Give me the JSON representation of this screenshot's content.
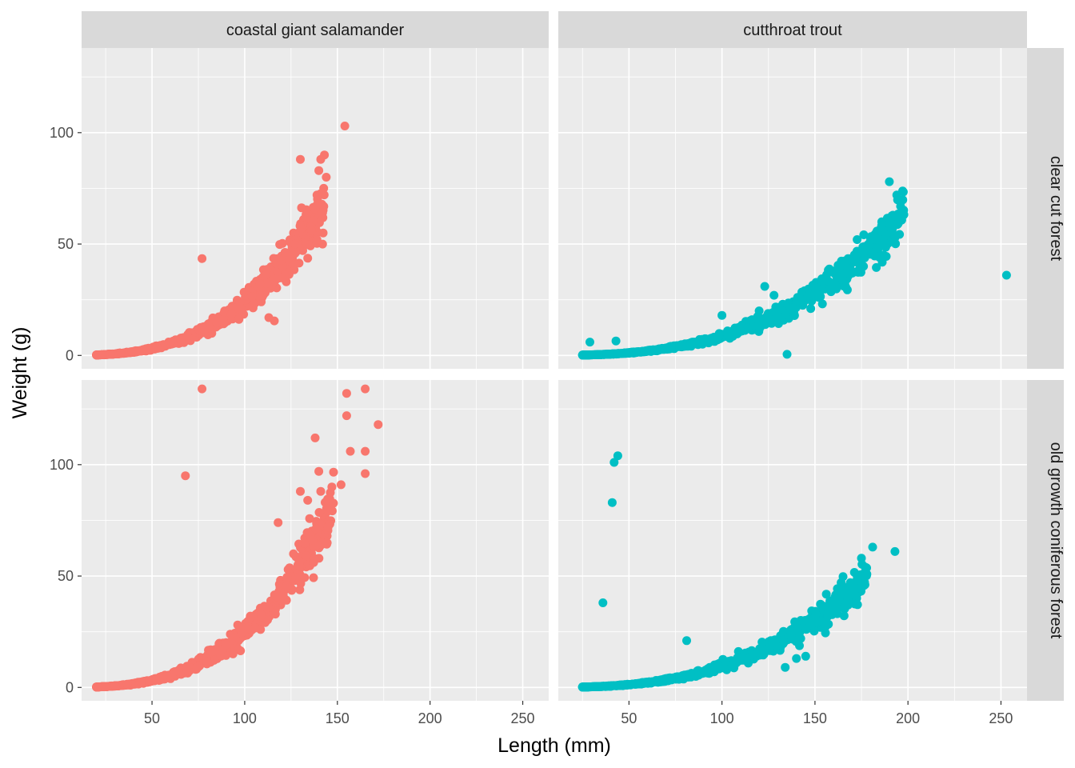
{
  "chart_data": {
    "type": "scatter",
    "xlabel": "Length (mm)",
    "ylabel": "Weight (g)",
    "xlim": [
      12,
      264
    ],
    "ylim": [
      -6,
      138
    ],
    "x_ticks": [
      50,
      100,
      150,
      200,
      250
    ],
    "y_ticks": [
      0,
      50,
      100
    ],
    "grid": true,
    "legend": "none",
    "col_facets": [
      "coastal giant salamander",
      "cutthroat trout"
    ],
    "row_facets": [
      "clear cut forest",
      "old growth coniferous forest"
    ],
    "colors": {
      "coastal giant salamander": "#F8766D",
      "cutthroat trout": "#00BFC4"
    },
    "panels": [
      {
        "species": "coastal giant salamander",
        "section": "clear cut forest",
        "length_range": [
          20,
          143
        ],
        "trend": {
          "a": 3.01e-05,
          "b": 2.95
        },
        "outliers": [
          [
            154,
            103
          ],
          [
            77,
            43.5
          ],
          [
            116,
            15.5
          ],
          [
            113,
            17
          ],
          [
            122,
            34
          ],
          [
            143,
            90
          ],
          [
            141,
            88
          ],
          [
            140,
            83
          ],
          [
            144,
            80
          ],
          [
            139,
            72
          ],
          [
            142,
            64
          ],
          [
            136,
            56
          ],
          [
            139,
            52
          ],
          [
            142,
            50
          ],
          [
            127,
            50
          ],
          [
            130,
            88
          ]
        ]
      },
      {
        "species": "cutthroat trout",
        "section": "clear cut forest",
        "length_range": [
          25,
          198
        ],
        "trend": {
          "a": 1.37e-05,
          "b": 2.9
        },
        "outliers": [
          [
            253,
            36
          ],
          [
            135,
            0.5
          ],
          [
            190,
            78
          ],
          [
            194,
            72
          ],
          [
            196,
            67
          ],
          [
            43,
            6.5
          ],
          [
            29,
            6
          ],
          [
            123,
            31
          ],
          [
            128,
            27
          ],
          [
            100,
            18
          ],
          [
            120,
            20
          ]
        ]
      },
      {
        "species": "coastal giant salamander",
        "section": "old growth coniferous forest",
        "length_range": [
          20,
          148
        ],
        "trend": {
          "a": 2.51e-05,
          "b": 3.0
        },
        "outliers": [
          [
            77,
            134
          ],
          [
            165,
            134
          ],
          [
            155,
            132
          ],
          [
            172,
            118
          ],
          [
            155,
            122
          ],
          [
            138,
            112
          ],
          [
            157,
            106
          ],
          [
            165,
            106
          ],
          [
            68,
            95
          ],
          [
            165,
            96
          ],
          [
            145,
            72
          ],
          [
            118,
            74
          ],
          [
            130,
            88
          ],
          [
            147,
            90
          ],
          [
            141,
            88
          ],
          [
            134,
            84
          ],
          [
            140,
            97
          ],
          [
            152,
            91
          ]
        ]
      },
      {
        "species": "cutthroat trout",
        "section": "old growth coniferous forest",
        "length_range": [
          25,
          178
        ],
        "trend": {
          "a": 1.49e-05,
          "b": 2.9
        },
        "outliers": [
          [
            44,
            104
          ],
          [
            42,
            101
          ],
          [
            41,
            83
          ],
          [
            36,
            38
          ],
          [
            81,
            21
          ],
          [
            193,
            61
          ],
          [
            181,
            63
          ],
          [
            175,
            58
          ],
          [
            134,
            9
          ],
          [
            140,
            13
          ],
          [
            145,
            14
          ],
          [
            177,
            54
          ],
          [
            169,
            47
          ]
        ]
      }
    ]
  }
}
